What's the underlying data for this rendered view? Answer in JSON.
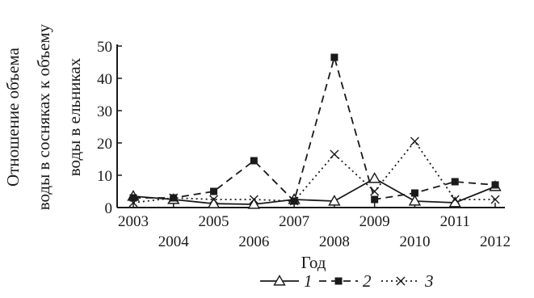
{
  "chart_data": {
    "type": "line",
    "title": "",
    "xlabel": "Год",
    "ylabel_lines": [
      "Отношение объема",
      "воды в сосняках к объему",
      "воды в ельниках"
    ],
    "x": [
      2003,
      2004,
      2005,
      2006,
      2007,
      2008,
      2009,
      2010,
      2011,
      2012
    ],
    "x_tick_labels": [
      "2003",
      "2004",
      "2005",
      "2006",
      "2007",
      "2008",
      "2009",
      "2010",
      "2011",
      "2012"
    ],
    "ylim": [
      0,
      50
    ],
    "y_ticks": [
      "0",
      "10",
      "20",
      "30",
      "40",
      "50"
    ],
    "grid": false,
    "legend_position": "bottom",
    "series": [
      {
        "name": "1",
        "marker": "triangle-open",
        "dash": "solid",
        "color": "#1a1a1a",
        "values": [
          3.5,
          2.5,
          1.2,
          1.0,
          2.5,
          2.0,
          9.0,
          2.0,
          1.5,
          6.5
        ]
      },
      {
        "name": "2",
        "marker": "square-filled",
        "dash": "dashed",
        "color": "#1a1a1a",
        "values": [
          3.0,
          3.0,
          5.0,
          14.5,
          2.0,
          46.5,
          2.5,
          4.5,
          8.0,
          7.0
        ]
      },
      {
        "name": "3",
        "marker": "x",
        "dash": "dotted",
        "color": "#1a1a1a",
        "values": [
          1.5,
          3.0,
          2.5,
          2.5,
          2.0,
          16.5,
          5.0,
          20.5,
          2.5,
          2.5
        ]
      }
    ]
  }
}
